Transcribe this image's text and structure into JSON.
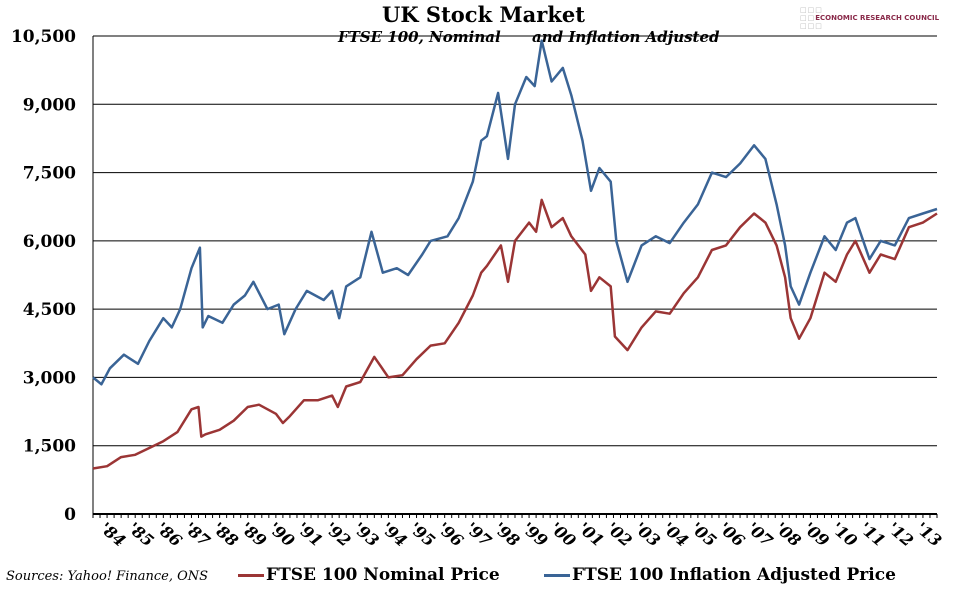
{
  "logo_text": "ECONOMIC RESEARCH COUNCIL",
  "source": "Sources: Yahoo! Finance, ONS",
  "chart_data": {
    "type": "line",
    "title": "UK Stock Market",
    "subtitle": "FTSE 100, Nominal      and Inflation Adjusted",
    "ylim": [
      0,
      10500
    ],
    "yticks": [
      0,
      1500,
      3000,
      4500,
      6000,
      7500,
      9000,
      10500
    ],
    "ytick_labels": [
      "0",
      "1,500",
      "3,000",
      "4,500",
      "6,000",
      "7,500",
      "9,000",
      "10,500"
    ],
    "xlim": [
      1984,
      2014
    ],
    "xtick_labels": [
      "'84",
      "'85",
      "'86",
      "'87",
      "'88",
      "'89",
      "'90",
      "'91",
      "'92",
      "'93",
      "'94",
      "'95",
      "'96",
      "'97",
      "'98",
      "'99",
      "'00",
      "'01",
      "'02",
      "'03",
      "'04",
      "'05",
      "'06",
      "'07",
      "'08",
      "'09",
      "'10",
      "'11",
      "'12",
      "'13"
    ],
    "grid": true,
    "legend": "bottom",
    "series": [
      {
        "name": "FTSE 100 Nominal Price",
        "color": "#9b3535",
        "x": [
          1984,
          1984.5,
          1985,
          1985.5,
          1986,
          1986.5,
          1987,
          1987.5,
          1987.75,
          1987.85,
          1988,
          1988.5,
          1989,
          1989.5,
          1989.9,
          1990.5,
          1990.75,
          1991,
          1991.5,
          1992,
          1992.5,
          1992.7,
          1993,
          1993.5,
          1994,
          1994.5,
          1995,
          1995.5,
          1996,
          1996.5,
          1997,
          1997.5,
          1997.8,
          1998,
          1998.5,
          1998.75,
          1999,
          1999.5,
          1999.75,
          1999.95,
          2000.3,
          2000.7,
          2001,
          2001.5,
          2001.7,
          2002,
          2002.4,
          2002.55,
          2003,
          2003.5,
          2004,
          2004.5,
          2005,
          2005.5,
          2006,
          2006.5,
          2007,
          2007.5,
          2007.9,
          2008.3,
          2008.6,
          2008.8,
          2009.1,
          2009.5,
          2010,
          2010.4,
          2010.8,
          2011.1,
          2011.6,
          2012,
          2012.5,
          2013,
          2013.5,
          2014
        ],
        "y": [
          1000,
          1050,
          1250,
          1300,
          1450,
          1600,
          1800,
          2300,
          2350,
          1700,
          1750,
          1850,
          2050,
          2350,
          2400,
          2200,
          2000,
          2150,
          2500,
          2500,
          2600,
          2350,
          2800,
          2900,
          3450,
          3000,
          3050,
          3400,
          3700,
          3750,
          4200,
          4800,
          5300,
          5450,
          5900,
          5100,
          6000,
          6400,
          6200,
          6900,
          6300,
          6500,
          6100,
          5700,
          4900,
          5200,
          5000,
          3900,
          3600,
          4100,
          4450,
          4400,
          4850,
          5200,
          5800,
          5900,
          6300,
          6600,
          6400,
          5900,
          5200,
          4300,
          3850,
          4300,
          5300,
          5100,
          5700,
          6000,
          5300,
          5700,
          5600,
          6300,
          6400,
          6600
        ]
      },
      {
        "name": "FTSE 100 Inflation Adjusted Price",
        "color": "#3a6496",
        "x": [
          1984,
          1984.3,
          1984.6,
          1985.1,
          1985.6,
          1986,
          1986.5,
          1986.8,
          1987.1,
          1987.5,
          1987.8,
          1987.9,
          1988.1,
          1988.6,
          1989,
          1989.4,
          1989.7,
          1990.2,
          1990.6,
          1990.8,
          1991.2,
          1991.6,
          1992.2,
          1992.5,
          1992.75,
          1993,
          1993.5,
          1993.9,
          1994.3,
          1994.8,
          1995.2,
          1995.7,
          1996,
          1996.6,
          1997,
          1997.5,
          1997.8,
          1998,
          1998.4,
          1998.75,
          1999,
          1999.4,
          1999.7,
          1999.95,
          2000.3,
          2000.7,
          2001,
          2001.4,
          2001.7,
          2002,
          2002.4,
          2002.6,
          2003,
          2003.5,
          2004,
          2004.5,
          2005,
          2005.5,
          2006,
          2006.5,
          2007,
          2007.5,
          2007.9,
          2008.3,
          2008.6,
          2008.8,
          2009.1,
          2009.5,
          2010,
          2010.4,
          2010.8,
          2011.1,
          2011.6,
          2012,
          2012.5,
          2013,
          2013.5,
          2014
        ],
        "y": [
          3000,
          2850,
          3200,
          3500,
          3300,
          3800,
          4300,
          4100,
          4500,
          5400,
          5850,
          4100,
          4350,
          4200,
          4600,
          4800,
          5100,
          4500,
          4600,
          3950,
          4500,
          4900,
          4700,
          4900,
          4300,
          5000,
          5200,
          6200,
          5300,
          5400,
          5250,
          5700,
          6000,
          6100,
          6500,
          7300,
          8200,
          8300,
          9250,
          7800,
          9000,
          9600,
          9400,
          10400,
          9500,
          9800,
          9200,
          8200,
          7100,
          7600,
          7300,
          6000,
          5100,
          5900,
          6100,
          5950,
          6400,
          6800,
          7500,
          7400,
          7700,
          8100,
          7800,
          6800,
          5900,
          5000,
          4600,
          5300,
          6100,
          5800,
          6400,
          6500,
          5600,
          6000,
          5900,
          6500,
          6600,
          6700
        ]
      }
    ]
  }
}
